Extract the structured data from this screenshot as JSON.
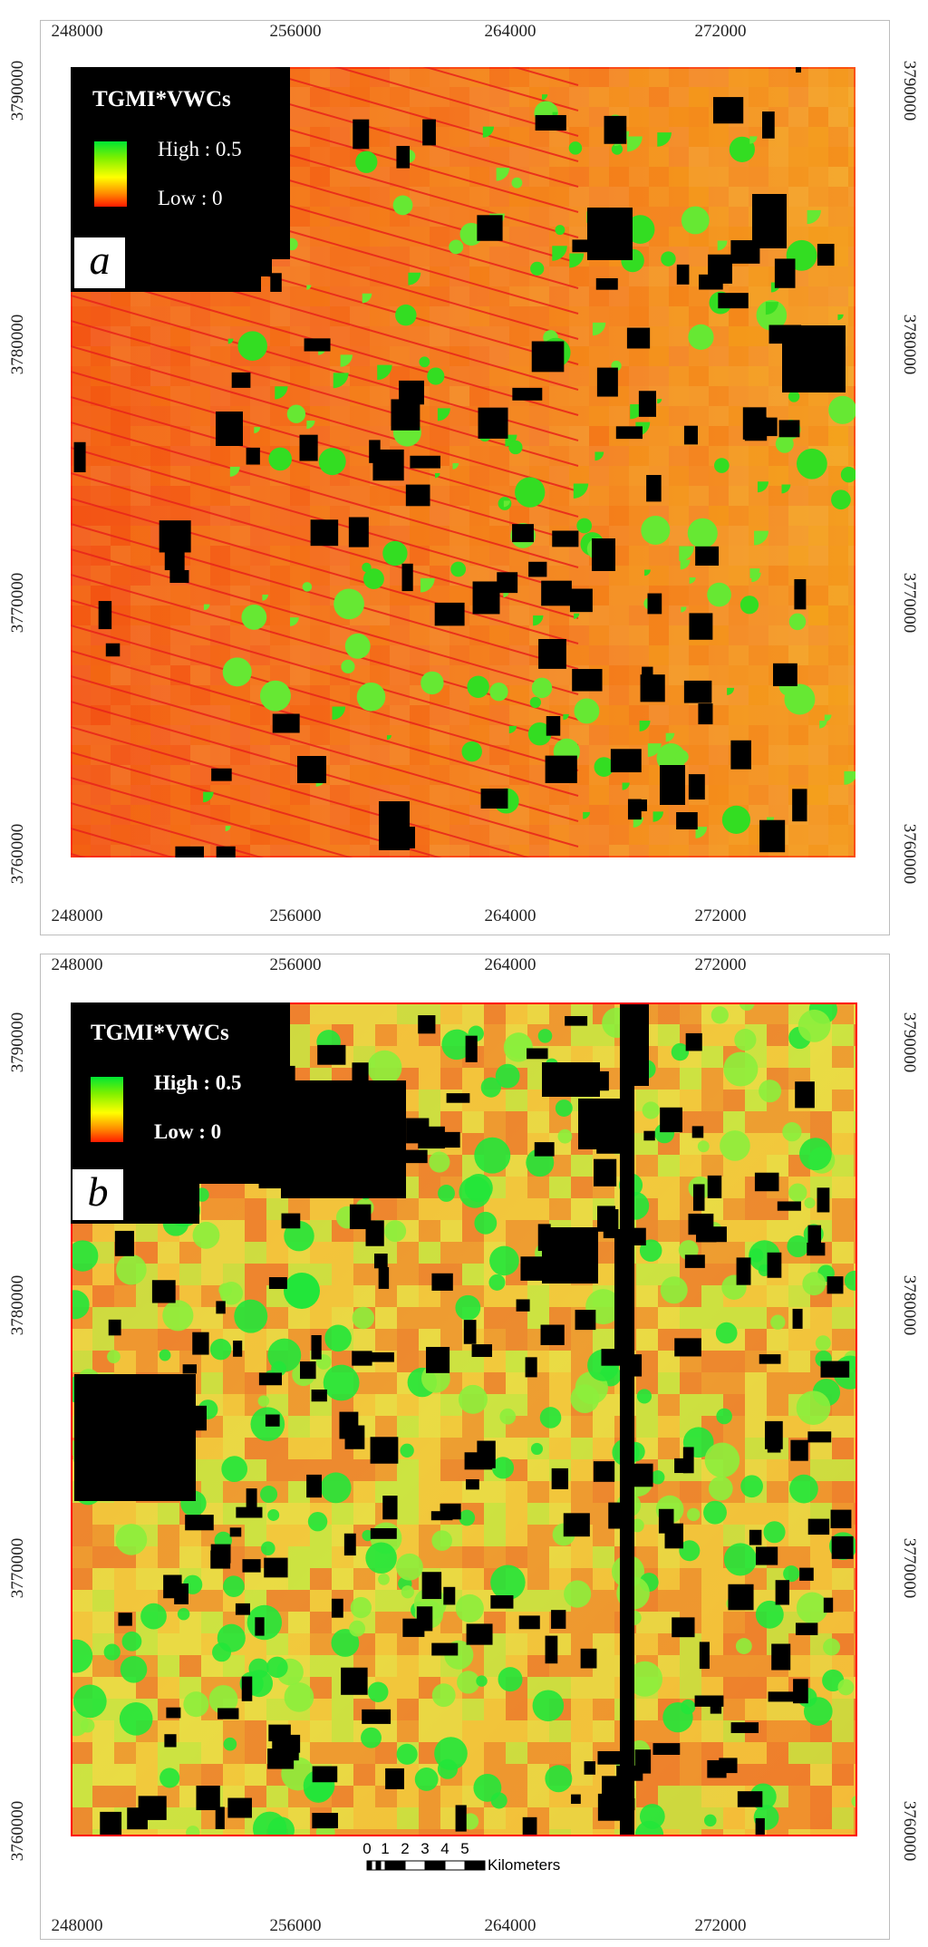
{
  "maps": [
    {
      "id": "a",
      "panel_label": "a",
      "legend": {
        "title": "TGMI*VWCs",
        "high_label": "High : 0.5",
        "low_label": "Low : 0"
      },
      "x_ticks": [
        "248000",
        "256000",
        "264000",
        "272000"
      ],
      "y_ticks": [
        "3790000",
        "3780000",
        "3770000",
        "3760000"
      ],
      "colors": {
        "low": "#ff1a00",
        "mid": "#ffff00",
        "high": "#00e633",
        "mask": "#000000"
      }
    },
    {
      "id": "b",
      "panel_label": "b",
      "legend": {
        "title": "TGMI*VWCs",
        "high_label": "High : 0.5",
        "low_label": "Low : 0"
      },
      "x_ticks": [
        "248000",
        "256000",
        "264000",
        "272000"
      ],
      "y_ticks": [
        "3790000",
        "3780000",
        "3770000",
        "3760000"
      ],
      "colors": {
        "low": "#ff1a00",
        "mid": "#ffff00",
        "high": "#00e633",
        "mask": "#000000"
      }
    }
  ],
  "scale_bar": {
    "labels": [
      "0",
      "1",
      "2",
      "3",
      "4",
      "5"
    ],
    "unit": "Kilometers"
  }
}
